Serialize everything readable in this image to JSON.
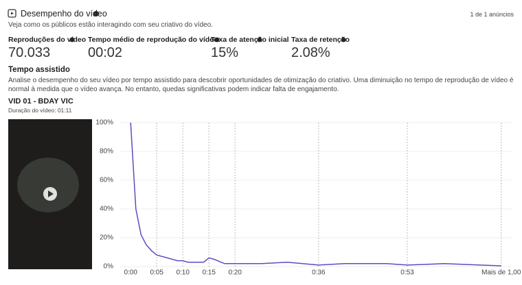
{
  "header": {
    "title": "Desempenho do vídeo",
    "subtitle": "Veja como os públicos estão interagindo com seu criativo do vídeo.",
    "ad_count": "1 de 1 anúncios"
  },
  "metrics": [
    {
      "label": "Reproduções do vídeo",
      "value": "70.033"
    },
    {
      "label": "Tempo médio de reprodução do vídeo",
      "value": "00:02"
    },
    {
      "label": "Taxa de atenção inicial",
      "value": "15%"
    },
    {
      "label": "Taxa de retenção",
      "value": "2.08%"
    }
  ],
  "section": {
    "title": "Tempo assistido",
    "description": "Analise o desempenho do seu vídeo por tempo assistido para descobrir oportunidades de otimização do criativo. Uma diminuição no tempo de reprodução de vídeo é normal à medida que o vídeo avança. No entanto, quedas significativas podem indicar falta de engajamento."
  },
  "video": {
    "name": "VID 01 - BDAY VIC",
    "duration": "Duração do vídeo: 01:11"
  },
  "chart_data": {
    "type": "line",
    "color": "#5b4bc4",
    "grid": true,
    "x": [
      0,
      1,
      2,
      3,
      4,
      5,
      7,
      9,
      10,
      11,
      14,
      15,
      16,
      18,
      20,
      25,
      30,
      36,
      41,
      49,
      53,
      60,
      67,
      71
    ],
    "values": [
      100,
      40,
      22,
      15,
      11,
      8,
      6,
      4,
      4,
      3,
      3,
      6,
      5,
      2,
      2,
      2,
      3,
      1,
      2,
      2,
      1,
      2,
      1,
      0.5
    ],
    "xlim": [
      -2,
      73
    ],
    "ylim": [
      0,
      100
    ],
    "xticks": [
      {
        "value": 0,
        "label": "0:00"
      },
      {
        "value": 5,
        "label": "0:05"
      },
      {
        "value": 10,
        "label": "0:10"
      },
      {
        "value": 15,
        "label": "0:15"
      },
      {
        "value": 20,
        "label": "0:20"
      },
      {
        "value": 36,
        "label": "0:36"
      },
      {
        "value": 53,
        "label": "0:53"
      },
      {
        "value": 71,
        "label": "Mais de 1,00"
      }
    ],
    "yticks": [
      {
        "value": 0,
        "label": "0%"
      },
      {
        "value": 20,
        "label": "20%"
      },
      {
        "value": 40,
        "label": "40%"
      },
      {
        "value": 60,
        "label": "60%"
      },
      {
        "value": 80,
        "label": "80%"
      },
      {
        "value": 100,
        "label": "100%"
      }
    ]
  }
}
